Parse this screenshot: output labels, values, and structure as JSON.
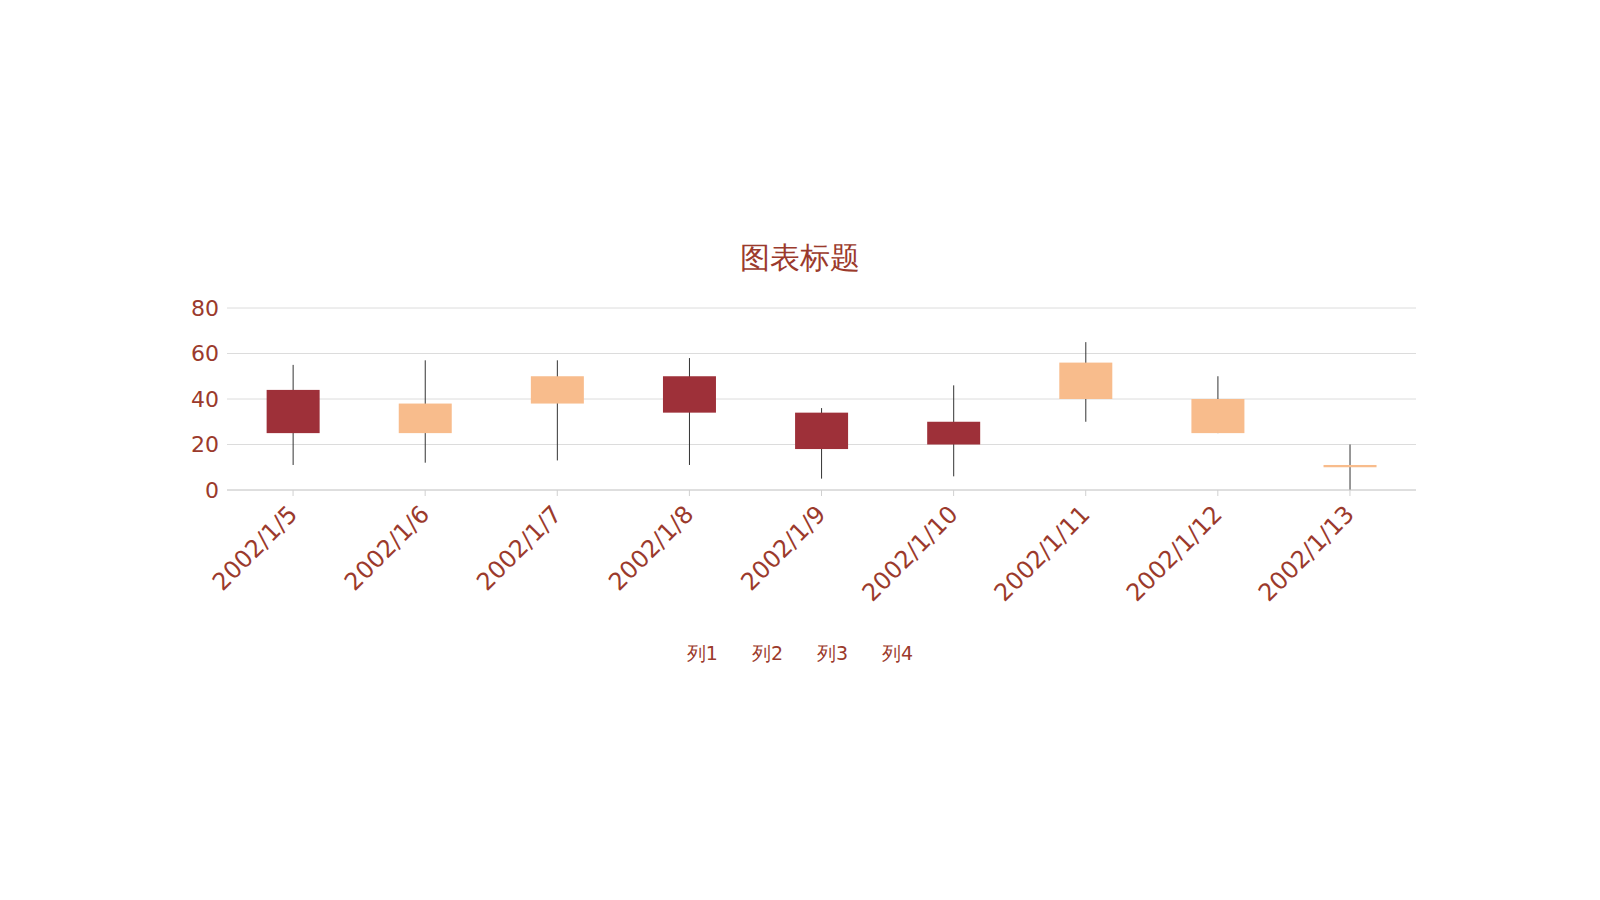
{
  "chart_data": {
    "type": "candlestick",
    "title": "图表标题",
    "categories": [
      "2002/1/5",
      "2002/1/6",
      "2002/1/7",
      "2002/1/8",
      "2002/1/9",
      "2002/1/10",
      "2002/1/11",
      "2002/1/12",
      "2002/1/13"
    ],
    "series": [
      {
        "name": "列1",
        "values": [
          44,
          25,
          38,
          50,
          34,
          30,
          40,
          25,
          10
        ]
      },
      {
        "name": "列2",
        "values": [
          55,
          57,
          57,
          58,
          36,
          46,
          65,
          50,
          20
        ]
      },
      {
        "name": "列3",
        "values": [
          11,
          12,
          13,
          11,
          5,
          6,
          30,
          25,
          0
        ]
      },
      {
        "name": "列4",
        "values": [
          25,
          38,
          50,
          34,
          18,
          20,
          56,
          40,
          11
        ]
      }
    ],
    "colors": [
      "#9e3039",
      "#f8bc8c",
      "#f8bc8c",
      "#9e3039",
      "#9e3039",
      "#9e3039",
      "#f8bc8c",
      "#f8bc8c",
      "#f8bc8c"
    ],
    "ylim": [
      0,
      80
    ],
    "yticks": [
      0,
      20,
      40,
      60,
      80
    ],
    "grid": true
  }
}
